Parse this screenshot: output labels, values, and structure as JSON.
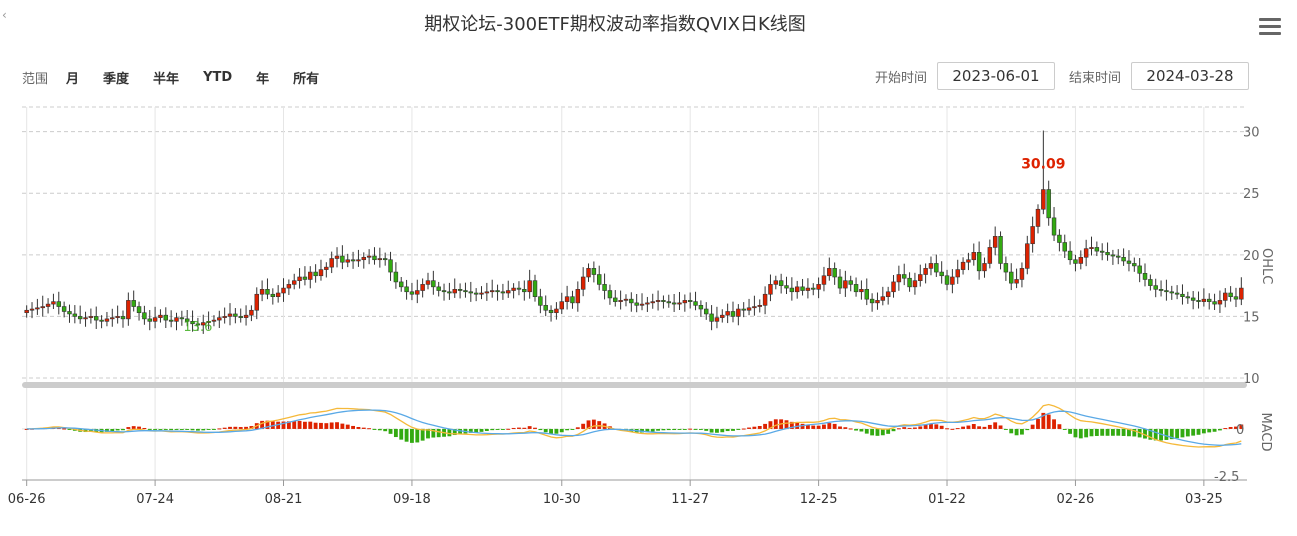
{
  "title": "期权论坛-300ETF期权波动率指数QVIX日K线图",
  "back_glyph": "‹",
  "range_selector": {
    "label": "范围",
    "buttons": [
      "月",
      "季度",
      "半年",
      "YTD",
      "年",
      "所有"
    ]
  },
  "date_range": {
    "start_label": "开始时间",
    "start_value": "2023-06-01",
    "end_label": "结束时间",
    "end_value": "2024-03-28"
  },
  "colors": {
    "up": "#dd2200",
    "down": "#33aa11",
    "grid": "#cccccc",
    "k_line": "#f5b93a",
    "d_line": "#5aa9e6"
  },
  "chart_data": [
    {
      "type": "candlestick",
      "name": "OHLC",
      "ylabel": "OHLC",
      "ylim": [
        10,
        32
      ],
      "yticks": [
        10,
        15,
        20,
        25,
        30
      ],
      "x_tick_labels": [
        "06-26",
        "07-24",
        "08-21",
        "09-18",
        "10-30",
        "11-27",
        "12-25",
        "01-22",
        "02-26",
        "03-25"
      ],
      "max_annotation": "30.09",
      "min_annotation": "13.6",
      "closes": [
        15.5,
        15.6,
        15.7,
        15.8,
        16.0,
        16.2,
        15.8,
        15.4,
        15.2,
        15.0,
        14.8,
        14.9,
        15.0,
        14.7,
        14.6,
        14.8,
        14.9,
        15.0,
        14.8,
        16.3,
        15.8,
        15.3,
        14.8,
        14.6,
        14.9,
        15.1,
        14.7,
        14.6,
        14.9,
        14.8,
        14.6,
        14.4,
        14.3,
        14.5,
        14.6,
        14.7,
        14.9,
        15.0,
        15.2,
        15.0,
        14.9,
        15.1,
        15.5,
        16.8,
        17.2,
        16.8,
        16.6,
        16.9,
        17.3,
        17.6,
        17.9,
        18.2,
        18.0,
        18.6,
        18.3,
        18.8,
        19.0,
        19.7,
        19.9,
        19.4,
        19.6,
        19.5,
        19.6,
        19.8,
        19.9,
        19.6,
        19.7,
        19.6,
        18.6,
        17.8,
        17.4,
        17.0,
        16.8,
        17.1,
        17.6,
        17.9,
        17.4,
        17.1,
        17.0,
        16.9,
        17.2,
        17.1,
        17.0,
        16.9,
        16.8,
        16.9,
        17.0,
        17.1,
        17.0,
        16.9,
        17.1,
        17.3,
        17.2,
        17.0,
        17.9,
        16.6,
        15.9,
        15.5,
        15.3,
        15.6,
        16.2,
        16.6,
        16.1,
        17.2,
        18.2,
        18.9,
        18.4,
        17.6,
        17.1,
        16.5,
        16.2,
        16.3,
        16.4,
        16.1,
        15.9,
        16.0,
        16.1,
        16.2,
        16.3,
        16.2,
        16.1,
        16.0,
        16.1,
        16.3,
        16.2,
        15.9,
        15.6,
        15.2,
        14.6,
        14.9,
        15.1,
        15.4,
        15.0,
        15.6,
        15.5,
        15.7,
        15.8,
        15.9,
        16.8,
        17.6,
        17.9,
        17.5,
        17.3,
        17.0,
        17.4,
        17.1,
        17.3,
        17.2,
        17.6,
        18.3,
        18.9,
        18.2,
        17.3,
        17.9,
        17.6,
        17.0,
        17.2,
        16.4,
        16.1,
        16.3,
        16.6,
        17.0,
        17.8,
        18.4,
        18.1,
        17.4,
        17.9,
        18.4,
        18.9,
        19.3,
        18.6,
        18.3,
        17.6,
        18.2,
        18.8,
        19.4,
        19.6,
        20.2,
        18.7,
        19.3,
        20.6,
        21.5,
        19.3,
        18.6,
        17.7,
        18.0,
        18.9,
        20.9,
        22.3,
        23.7,
        25.3,
        23.0,
        21.6,
        21.0,
        20.3,
        19.6,
        19.3,
        19.8,
        20.5,
        20.6,
        20.3,
        20.2,
        20.0,
        19.9,
        19.8,
        19.5,
        19.3,
        19.1,
        18.5,
        18.0,
        17.5,
        17.2,
        17.1,
        17.0,
        16.9,
        16.8,
        16.6,
        16.5,
        16.3,
        16.2,
        16.4,
        16.2,
        16.0,
        16.3,
        16.9,
        16.6,
        16.4,
        17.3
      ]
    },
    {
      "type": "bar+line",
      "name": "MACD",
      "ylabel": "MACD",
      "ylim": [
        -2.7,
        1.9
      ],
      "yticks": [
        0,
        -2.5
      ],
      "series_note": "histogram with two signal lines"
    }
  ]
}
